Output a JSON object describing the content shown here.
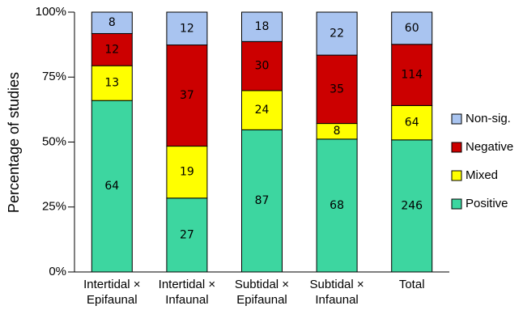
{
  "chart_data": {
    "type": "bar",
    "stacking": "percent",
    "ylabel": "Percentage of studies",
    "categories": [
      "Intertidal ×\nEpifaunal",
      "Intertidal ×\nInfaunal",
      "Subtidal ×\nEpifaunal",
      "Subtidal ×\nInfaunal",
      "Total"
    ],
    "series": [
      {
        "name": "Positive",
        "color": "#3dd6a0",
        "values": [
          64,
          27,
          87,
          68,
          246
        ]
      },
      {
        "name": "Mixed",
        "color": "#ffff00",
        "values": [
          13,
          19,
          24,
          8,
          64
        ]
      },
      {
        "name": "Negative",
        "color": "#cc0000",
        "values": [
          12,
          37,
          30,
          35,
          114
        ]
      },
      {
        "name": "Non-sig.",
        "color": "#a9c4f0",
        "values": [
          8,
          12,
          18,
          22,
          60
        ]
      }
    ],
    "ylim": [
      0,
      100
    ],
    "yticks": [
      {
        "value": 0,
        "label": "0%"
      },
      {
        "value": 25,
        "label": "25%"
      },
      {
        "value": 50,
        "label": "50%"
      },
      {
        "value": 75,
        "label": "75%"
      },
      {
        "value": 100,
        "label": "100%"
      }
    ],
    "legend": "right"
  }
}
